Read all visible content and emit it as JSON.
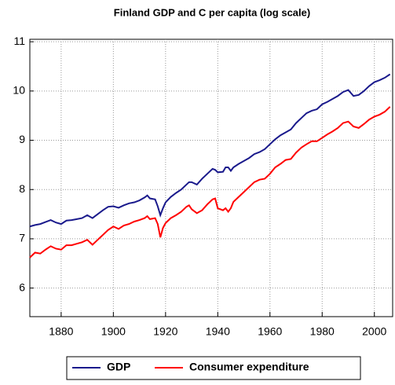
{
  "chart_data": {
    "type": "line",
    "title": "Finland GDP and C per capita (log scale)",
    "x": [
      1868,
      1870,
      1872,
      1874,
      1876,
      1878,
      1880,
      1882,
      1884,
      1886,
      1888,
      1890,
      1892,
      1894,
      1896,
      1898,
      1900,
      1902,
      1904,
      1906,
      1908,
      1910,
      1912,
      1913,
      1914,
      1916,
      1917,
      1918,
      1919,
      1920,
      1922,
      1924,
      1926,
      1928,
      1929,
      1930,
      1932,
      1934,
      1936,
      1938,
      1939,
      1940,
      1942,
      1943,
      1944,
      1945,
      1946,
      1948,
      1950,
      1952,
      1954,
      1956,
      1958,
      1960,
      1962,
      1964,
      1966,
      1968,
      1970,
      1972,
      1974,
      1976,
      1978,
      1980,
      1982,
      1984,
      1986,
      1988,
      1990,
      1992,
      1994,
      1996,
      1998,
      2000,
      2002,
      2004,
      2006
    ],
    "series": [
      {
        "name": "GDP",
        "color": "#1a1a8c",
        "values": [
          7.25,
          7.28,
          7.3,
          7.34,
          7.38,
          7.33,
          7.3,
          7.37,
          7.38,
          7.4,
          7.42,
          7.48,
          7.42,
          7.5,
          7.58,
          7.65,
          7.66,
          7.63,
          7.68,
          7.72,
          7.74,
          7.78,
          7.84,
          7.88,
          7.82,
          7.8,
          7.66,
          7.48,
          7.62,
          7.74,
          7.85,
          7.93,
          8.0,
          8.1,
          8.15,
          8.15,
          8.1,
          8.22,
          8.32,
          8.42,
          8.4,
          8.35,
          8.36,
          8.45,
          8.45,
          8.38,
          8.45,
          8.52,
          8.58,
          8.64,
          8.72,
          8.76,
          8.82,
          8.92,
          9.02,
          9.1,
          9.16,
          9.22,
          9.35,
          9.45,
          9.55,
          9.6,
          9.63,
          9.73,
          9.78,
          9.84,
          9.9,
          9.98,
          10.02,
          9.9,
          9.92,
          10.0,
          10.1,
          10.18,
          10.22,
          10.27,
          10.34
        ]
      },
      {
        "name": "Consumer expenditure",
        "color": "#ff0000",
        "values": [
          6.62,
          6.72,
          6.7,
          6.78,
          6.85,
          6.8,
          6.78,
          6.87,
          6.87,
          6.9,
          6.93,
          6.98,
          6.88,
          6.98,
          7.08,
          7.18,
          7.25,
          7.2,
          7.27,
          7.3,
          7.35,
          7.38,
          7.42,
          7.46,
          7.4,
          7.42,
          7.3,
          7.03,
          7.22,
          7.32,
          7.42,
          7.48,
          7.55,
          7.65,
          7.68,
          7.6,
          7.52,
          7.58,
          7.7,
          7.8,
          7.82,
          7.62,
          7.58,
          7.62,
          7.55,
          7.62,
          7.75,
          7.85,
          7.95,
          8.05,
          8.15,
          8.2,
          8.22,
          8.32,
          8.45,
          8.52,
          8.6,
          8.62,
          8.75,
          8.85,
          8.92,
          8.98,
          8.98,
          9.05,
          9.12,
          9.18,
          9.25,
          9.35,
          9.38,
          9.28,
          9.25,
          9.33,
          9.42,
          9.48,
          9.52,
          9.58,
          9.68
        ]
      }
    ],
    "xlim": [
      1868,
      2007
    ],
    "xticks": [
      1880,
      1900,
      1920,
      1940,
      1960,
      1980,
      2000
    ],
    "ylim": [
      5.42,
      11.05
    ],
    "yticks": [
      6,
      7,
      8,
      9,
      10,
      11
    ],
    "grid": true,
    "legend": "bottom"
  }
}
